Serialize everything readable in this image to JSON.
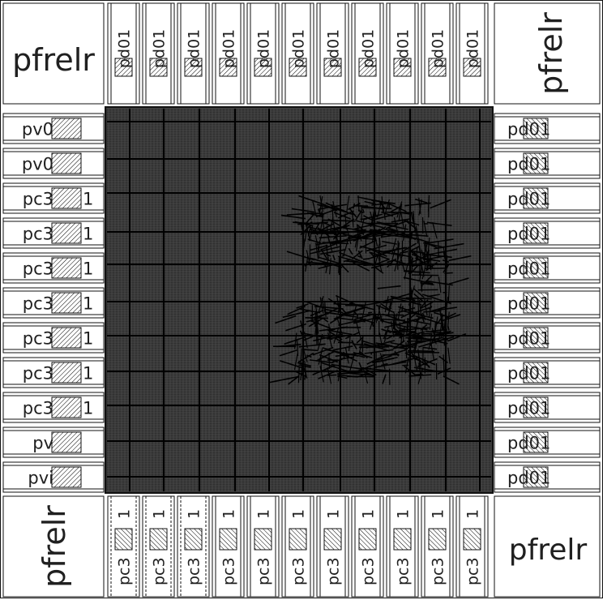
{
  "corners": {
    "top_left": "pfrelr",
    "top_right": "pfrelr",
    "bottom_left": "pfrelr",
    "bottom_right": "pfrelr"
  },
  "top_pads": [
    "pd01",
    "pd01",
    "pd01",
    "pd01",
    "pd01",
    "pd01",
    "pd01",
    "pd01",
    "pd01",
    "pd01",
    "pd01"
  ],
  "right_pads": [
    "pd01",
    "pd01",
    "pd01",
    "pd01",
    "pd01",
    "pd01",
    "pd01",
    "pd01",
    "pd01",
    "pd01",
    "pd01"
  ],
  "left_pads": [
    "pv0",
    "pv0",
    "pc3",
    "pc3",
    "pc3",
    "pc3",
    "pc3",
    "pc3",
    "pc3",
    "pv",
    "pvi"
  ],
  "left_pad_suffix": [
    "",
    "",
    "1",
    "1",
    "1",
    "1",
    "1",
    "1",
    "1",
    "",
    ""
  ],
  "bottom_pads": [
    "pc3",
    "pc3",
    "pc3",
    "pc3",
    "pc3",
    "pc3",
    "pc3",
    "pc3",
    "pc3",
    "pc3",
    "pc3"
  ],
  "bottom_pad_suffix": "1",
  "colors": {
    "line": "#111111",
    "core_fill": "#3a3a3a",
    "hatch": "#000000",
    "background": "#ffffff"
  }
}
